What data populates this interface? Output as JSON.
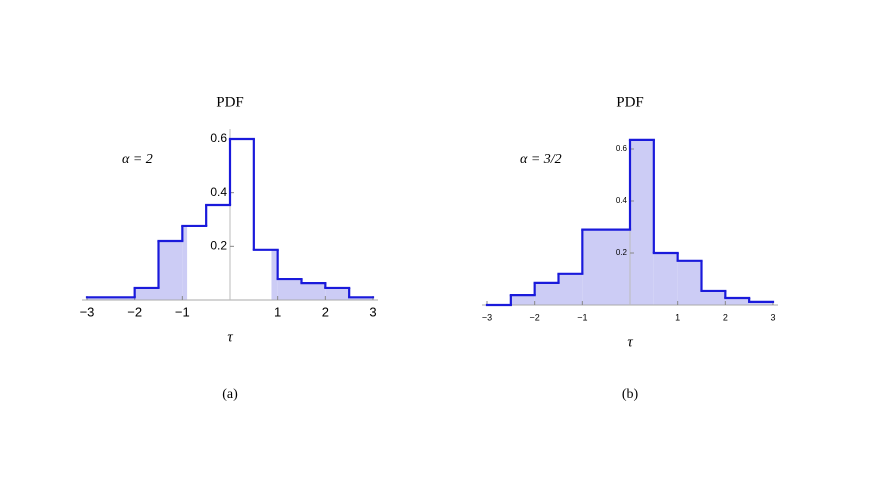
{
  "chart_data": [
    {
      "type": "histogram",
      "title": "PDF",
      "annotation": "α = 2",
      "xlabel": "τ",
      "caption": "(a)",
      "bins": [
        -3,
        -2,
        -1.5,
        -1,
        -0.5,
        0,
        0.5,
        1,
        1.5,
        2,
        2.5,
        3
      ],
      "values": [
        0.01,
        0.045,
        0.22,
        0.276,
        0.354,
        0.6,
        0.187,
        0.078,
        0.063,
        0.045,
        0.01
      ],
      "color": "#1a1adb",
      "shade_color": "#ccccf5",
      "shade": [
        [
          -3,
          -0.9
        ],
        [
          0.87,
          3
        ]
      ],
      "xlim": [
        -3,
        3
      ],
      "ylim": [
        0,
        0.6
      ],
      "xticks": [
        {
          "value": -3,
          "label": "−3"
        },
        {
          "value": -2,
          "label": "−2"
        },
        {
          "value": -1,
          "label": "−1"
        },
        1,
        2,
        3
      ],
      "yticks": [
        0.2,
        0.4,
        0.6
      ]
    },
    {
      "type": "histogram",
      "title": "PDF",
      "annotation": "α = 3/2",
      "xlabel": "τ",
      "caption": "(b)",
      "bins": [
        -3,
        -2.5,
        -2,
        -1.5,
        -1,
        0,
        0.5,
        1,
        1.5,
        2,
        2.5,
        3
      ],
      "values": [
        0,
        0.038,
        0.085,
        0.12,
        0.29,
        0.635,
        0.2,
        0.17,
        0.054,
        0.027,
        0.012
      ],
      "color": "#1a1adb",
      "shade_color": "#ccccf5",
      "shade": [
        [
          -3,
          3
        ]
      ],
      "xlim": [
        -3,
        3
      ],
      "ylim": [
        0,
        0.6
      ],
      "xticks": [
        {
          "value": -3,
          "label": "−3"
        },
        {
          "value": -2,
          "label": "−2"
        },
        {
          "value": -1,
          "label": "−1"
        },
        1,
        2,
        3
      ],
      "yticks": [
        0.2,
        0.4,
        0.6
      ]
    }
  ]
}
